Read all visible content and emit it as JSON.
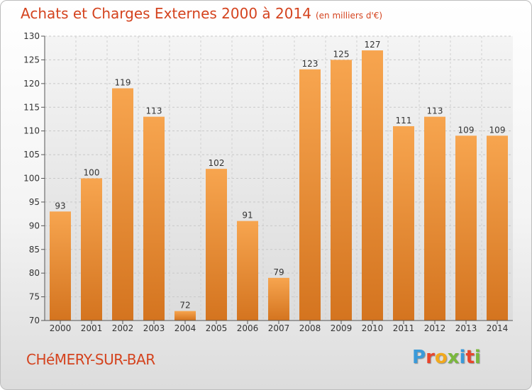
{
  "header": {
    "title": "Achats et Charges Externes 2000 à 2014",
    "unit": "(en milliers d'€)"
  },
  "footer": {
    "commune": "CHéMERY-SUR-BAR",
    "brand": "Proxiti"
  },
  "colors": {
    "title": "#d4431e",
    "bar_light": "#f7a54f",
    "bar_dark": "#d4741f"
  },
  "chart_data": {
    "type": "bar",
    "title": "Achats et Charges Externes 2000 à 2014",
    "subtitle": "(en milliers d'€)",
    "xlabel": "",
    "ylabel": "",
    "ylim": [
      70,
      130
    ],
    "yticks": [
      70,
      75,
      80,
      85,
      90,
      95,
      100,
      105,
      110,
      115,
      120,
      125,
      130
    ],
    "grid": true,
    "categories": [
      "2000",
      "2001",
      "2002",
      "2003",
      "2004",
      "2005",
      "2006",
      "2007",
      "2008",
      "2009",
      "2010",
      "2011",
      "2012",
      "2013",
      "2014"
    ],
    "values": [
      93,
      100,
      119,
      113,
      72,
      102,
      91,
      79,
      123,
      125,
      127,
      111,
      113,
      109,
      109
    ]
  }
}
